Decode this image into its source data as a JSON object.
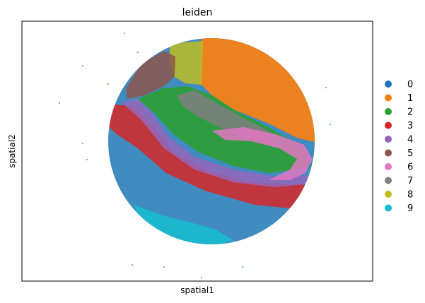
{
  "chart_data": {
    "type": "scatter",
    "title": "leiden",
    "xlabel": "spatial1",
    "ylabel": "spatial2",
    "x_ticks": [],
    "y_ticks": [],
    "legend_placement": "right",
    "legend": [
      {
        "label": "0",
        "color": "#1f77b4"
      },
      {
        "label": "1",
        "color": "#ff7f0e"
      },
      {
        "label": "2",
        "color": "#2ca02c"
      },
      {
        "label": "3",
        "color": "#d62728"
      },
      {
        "label": "4",
        "color": "#9467bd"
      },
      {
        "label": "5",
        "color": "#8c564b"
      },
      {
        "label": "6",
        "color": "#e377c2"
      },
      {
        "label": "7",
        "color": "#7f7f7f"
      },
      {
        "label": "8",
        "color": "#bcbd22"
      },
      {
        "label": "9",
        "color": "#17becf"
      }
    ]
  }
}
